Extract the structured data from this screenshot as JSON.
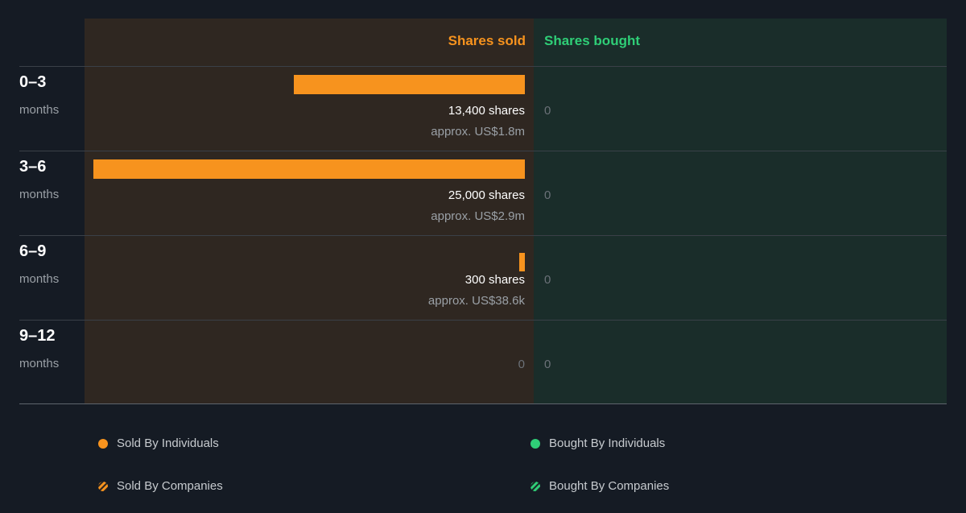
{
  "colors": {
    "sold": "#f7931e",
    "bought": "#2fce77"
  },
  "chart_data": {
    "type": "bar",
    "headers": {
      "sold": "Shares sold",
      "bought": "Shares bought"
    },
    "max_value": 25000,
    "rows": [
      {
        "period": "0–3",
        "unit": "months",
        "sold_value": 13400,
        "sold_shares": "13,400 shares",
        "sold_approx": "approx. US$1.8m",
        "sold_zero": "",
        "bought_value": 0,
        "bought_label": "0"
      },
      {
        "period": "3–6",
        "unit": "months",
        "sold_value": 25000,
        "sold_shares": "25,000 shares",
        "sold_approx": "approx. US$2.9m",
        "sold_zero": "",
        "bought_value": 0,
        "bought_label": "0"
      },
      {
        "period": "6–9",
        "unit": "months",
        "sold_value": 300,
        "sold_shares": "300 shares",
        "sold_approx": "approx. US$38.6k",
        "sold_zero": "",
        "bought_value": 0,
        "bought_label": "0"
      },
      {
        "period": "9–12",
        "unit": "months",
        "sold_value": 0,
        "sold_shares": "",
        "sold_approx": "",
        "sold_zero": "0",
        "bought_value": 0,
        "bought_label": "0"
      }
    ],
    "legend": {
      "sold_individuals": "Sold By Individuals",
      "bought_individuals": "Bought By Individuals",
      "sold_companies": "Sold By Companies",
      "bought_companies": "Bought By Companies"
    }
  }
}
